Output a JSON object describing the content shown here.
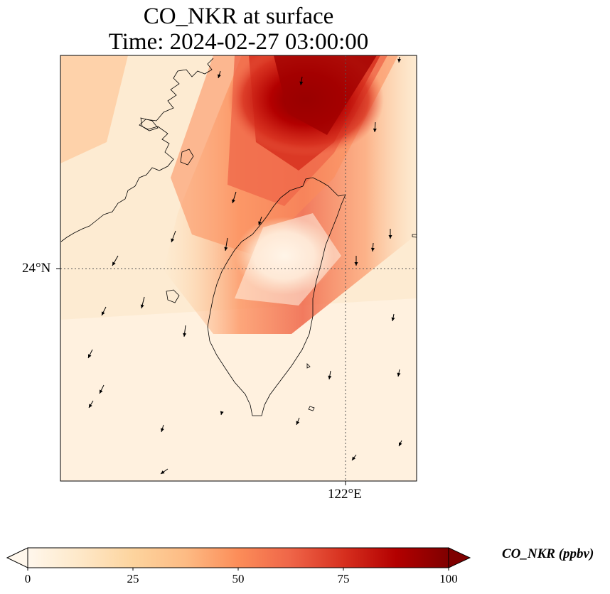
{
  "title_line1": "CO_NKR at surface",
  "title_line2": "Time: 2024-02-27 03:00:00",
  "map": {
    "lat_tick_label": "24°N",
    "lon_tick_label": "122°E",
    "gridline_color": "#555555",
    "coastline_color": "#000000"
  },
  "colorbar": {
    "label": "CO_NKR (ppbv)",
    "colormap": "OrRd",
    "vmin": 0,
    "vmax": 100,
    "extend": "both",
    "ticks": [
      "0",
      "25",
      "50",
      "75",
      "100"
    ],
    "colors": [
      "#fff7ec",
      "#fee8c8",
      "#fdd49e",
      "#fdbb84",
      "#fc8d59",
      "#ef6548",
      "#d7301f",
      "#b30000",
      "#7f0000"
    ]
  }
}
